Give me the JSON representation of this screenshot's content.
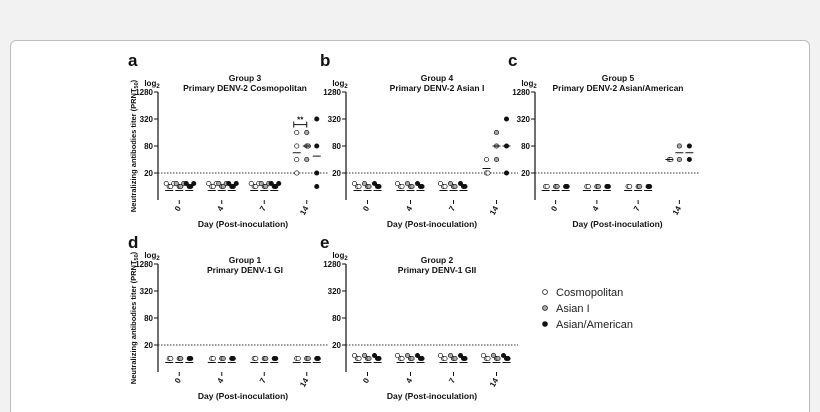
{
  "colors": {
    "background": "#f2f2f2",
    "panel": "#ffffff",
    "axis": "#111111"
  },
  "ylabel_shared": "Neutralizing antibodies titer (PRNT50)",
  "ylog_label": "log2",
  "legend": [
    {
      "label": "Cosmopolitan",
      "marker": "open-circle"
    },
    {
      "label": "Asian I",
      "marker": "gray-circle"
    },
    {
      "label": "Asian/American",
      "marker": "black-circle"
    }
  ],
  "chart_data": [
    {
      "panel": "a",
      "type": "scatter",
      "title": [
        "Group 3",
        "Primary DENV-2 Cosmopolitan"
      ],
      "xlabel": "Day (Post-inoculation)",
      "categories": [
        "0",
        "4",
        "7",
        "14"
      ],
      "y_ticks": [
        "20",
        "80",
        "320",
        "1280"
      ],
      "y_scale": "log2",
      "ylim": [
        5,
        1280
      ],
      "threshold": 20,
      "annotation": "**",
      "series": [
        {
          "name": "Cosmopolitan",
          "values": [
            [
              10,
              10,
              10,
              10
            ],
            [
              10,
              10,
              10,
              10
            ],
            [
              10,
              10,
              10,
              10
            ],
            [
              20,
              40,
              80,
              160
            ]
          ]
        },
        {
          "name": "Asian I",
          "values": [
            [
              10,
              10,
              10,
              10
            ],
            [
              10,
              10,
              10,
              10
            ],
            [
              10,
              10,
              10,
              10
            ],
            [
              40,
              80,
              80,
              160
            ]
          ]
        },
        {
          "name": "Asian/American",
          "values": [
            [
              10,
              10,
              10,
              10
            ],
            [
              10,
              10,
              10,
              10
            ],
            [
              10,
              10,
              10,
              10
            ],
            [
              10,
              20,
              80,
              320
            ]
          ]
        }
      ]
    },
    {
      "panel": "b",
      "type": "scatter",
      "title": [
        "Group 4",
        "Primary DENV-2 Asian I"
      ],
      "xlabel": "Day (Post-inoculation)",
      "categories": [
        "0",
        "4",
        "7",
        "14"
      ],
      "y_ticks": [
        "20",
        "80",
        "320",
        "1280"
      ],
      "y_scale": "log2",
      "ylim": [
        5,
        1280
      ],
      "threshold": 20,
      "series": [
        {
          "name": "Cosmopolitan",
          "values": [
            [
              10,
              10,
              10
            ],
            [
              10,
              10,
              10
            ],
            [
              10,
              10,
              10
            ],
            [
              20,
              20,
              40
            ]
          ]
        },
        {
          "name": "Asian I",
          "values": [
            [
              10,
              10,
              10
            ],
            [
              10,
              10,
              10
            ],
            [
              10,
              10,
              10
            ],
            [
              40,
              80,
              160
            ]
          ]
        },
        {
          "name": "Asian/American",
          "values": [
            [
              10,
              10,
              10
            ],
            [
              10,
              10,
              10
            ],
            [
              10,
              10,
              10
            ],
            [
              20,
              80,
              320
            ]
          ]
        }
      ]
    },
    {
      "panel": "c",
      "type": "scatter",
      "title": [
        "Group 5",
        "Primary DENV-2  Asian/American"
      ],
      "xlabel": "Day (Post-inoculation)",
      "categories": [
        "0",
        "4",
        "7",
        "14"
      ],
      "y_ticks": [
        "20",
        "80",
        "320",
        "1280"
      ],
      "y_scale": "log2",
      "ylim": [
        5,
        1280
      ],
      "threshold": 20,
      "series": [
        {
          "name": "Cosmopolitan",
          "values": [
            [
              10,
              10
            ],
            [
              10,
              10
            ],
            [
              10,
              10
            ],
            [
              40,
              40
            ]
          ]
        },
        {
          "name": "Asian I",
          "values": [
            [
              10,
              10
            ],
            [
              10,
              10
            ],
            [
              10,
              10
            ],
            [
              40,
              80
            ]
          ]
        },
        {
          "name": "Asian/American",
          "values": [
            [
              10,
              10
            ],
            [
              10,
              10
            ],
            [
              10,
              10
            ],
            [
              40,
              80
            ]
          ]
        }
      ]
    },
    {
      "panel": "d",
      "type": "scatter",
      "title": [
        "Group 1",
        "Primary DENV-1 GI"
      ],
      "xlabel": "Day (Post-inoculation)",
      "categories": [
        "0",
        "4",
        "7",
        "14"
      ],
      "y_ticks": [
        "20",
        "80",
        "320",
        "1280"
      ],
      "y_scale": "log2",
      "ylim": [
        5,
        1280
      ],
      "threshold": 20,
      "series": [
        {
          "name": "Cosmopolitan",
          "values": [
            [
              10,
              10
            ],
            [
              10,
              10
            ],
            [
              10,
              10
            ],
            [
              10,
              10
            ]
          ]
        },
        {
          "name": "Asian I",
          "values": [
            [
              10,
              10
            ],
            [
              10,
              10
            ],
            [
              10,
              10
            ],
            [
              10,
              10
            ]
          ]
        },
        {
          "name": "Asian/American",
          "values": [
            [
              10,
              10
            ],
            [
              10,
              10
            ],
            [
              10,
              10
            ],
            [
              10,
              10
            ]
          ]
        }
      ]
    },
    {
      "panel": "e",
      "type": "scatter",
      "title": [
        "Group 2",
        "Primary DENV-1 GII"
      ],
      "xlabel": "Day (Post-inoculation)",
      "categories": [
        "0",
        "4",
        "7",
        "14"
      ],
      "y_ticks": [
        "20",
        "80",
        "320",
        "1280"
      ],
      "y_scale": "log2",
      "ylim": [
        5,
        1280
      ],
      "threshold": 20,
      "series": [
        {
          "name": "Cosmopolitan",
          "values": [
            [
              10,
              10,
              10
            ],
            [
              10,
              10,
              10
            ],
            [
              10,
              10,
              10
            ],
            [
              10,
              10,
              10
            ]
          ]
        },
        {
          "name": "Asian I",
          "values": [
            [
              10,
              10,
              10
            ],
            [
              10,
              10,
              10
            ],
            [
              10,
              10,
              10
            ],
            [
              10,
              10,
              10
            ]
          ]
        },
        {
          "name": "Asian/American",
          "values": [
            [
              10,
              10,
              10
            ],
            [
              10,
              10,
              10
            ],
            [
              10,
              10,
              10
            ],
            [
              10,
              10,
              10
            ]
          ]
        }
      ]
    }
  ]
}
